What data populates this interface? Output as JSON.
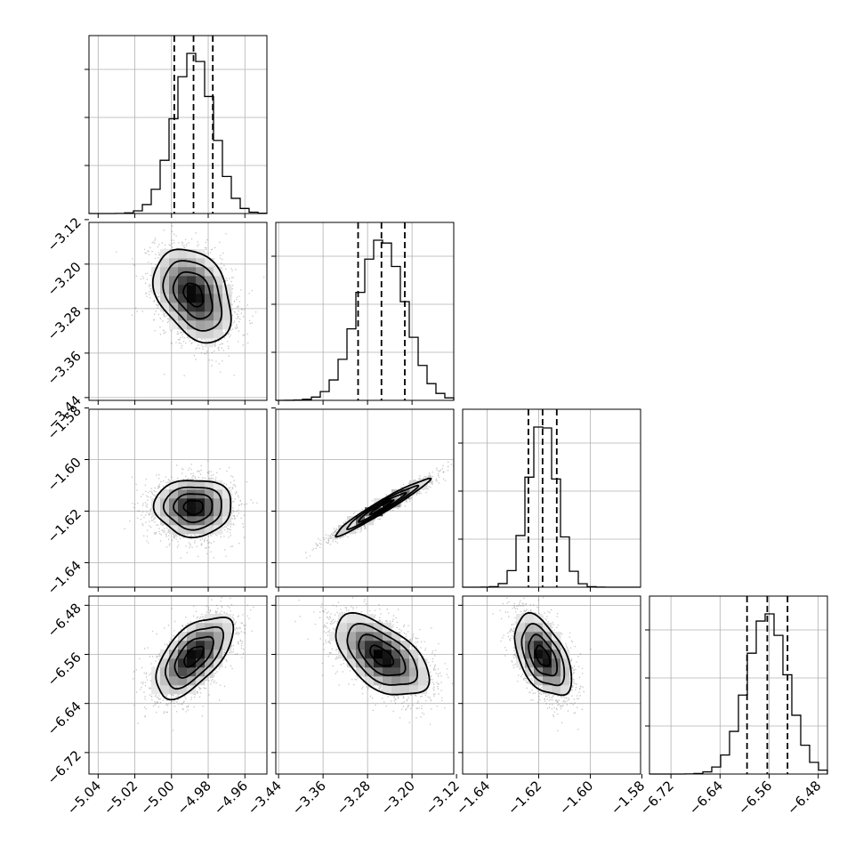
{
  "chart_data": {
    "type": "corner",
    "grid": true,
    "parameters": [
      {
        "mean": -4.988,
        "sd": 0.0105,
        "range": [
          -5.045,
          -4.948
        ],
        "ticks": [
          "-5.04",
          "-5.02",
          "-5.00",
          "-4.98",
          "-4.96"
        ],
        "tick_values": [
          -5.04,
          -5.02,
          -5.0,
          -4.98,
          -4.96
        ],
        "quantiles": [
          -4.9985,
          -4.988,
          -4.9775
        ]
      },
      {
        "mean": -3.255,
        "sd": 0.042,
        "range": [
          -3.445,
          -3.125
        ],
        "ticks": [
          "-3.44",
          "-3.36",
          "-3.28",
          "-3.20",
          "-3.12"
        ],
        "tick_values": [
          -3.44,
          -3.36,
          -3.28,
          -3.2,
          -3.12
        ],
        "quantiles": [
          -3.297,
          -3.255,
          -3.213
        ]
      },
      {
        "mean": -1.6185,
        "sd": 0.0055,
        "range": [
          -1.6495,
          -1.5805
        ],
        "ticks": [
          "-1.64",
          "-1.62",
          "-1.60",
          "-1.58"
        ],
        "tick_values": [
          -1.64,
          -1.62,
          -1.6,
          -1.58
        ],
        "quantiles": [
          -1.624,
          -1.6185,
          -1.613
        ]
      },
      {
        "mean": -6.563,
        "sd": 0.033,
        "range": [
          -6.755,
          -6.465
        ],
        "ticks": [
          "-6.72",
          "-6.64",
          "-6.56",
          "-6.48"
        ],
        "tick_values": [
          -6.72,
          -6.64,
          -6.56,
          -6.48
        ],
        "quantiles": [
          -6.596,
          -6.563,
          -6.53
        ]
      }
    ],
    "hist_ticks": [
      0.3,
      0.6,
      0.9
    ],
    "correlations": {
      "1-0": -0.35,
      "2-0": 0.0,
      "2-1": 0.97,
      "3-0": 0.6,
      "3-1": -0.55,
      "3-2": -0.5
    },
    "colors": {
      "line": "#000000",
      "scatter": "#5a5a5a",
      "grid": "#b0b0b0",
      "density_max": "#000000"
    }
  }
}
